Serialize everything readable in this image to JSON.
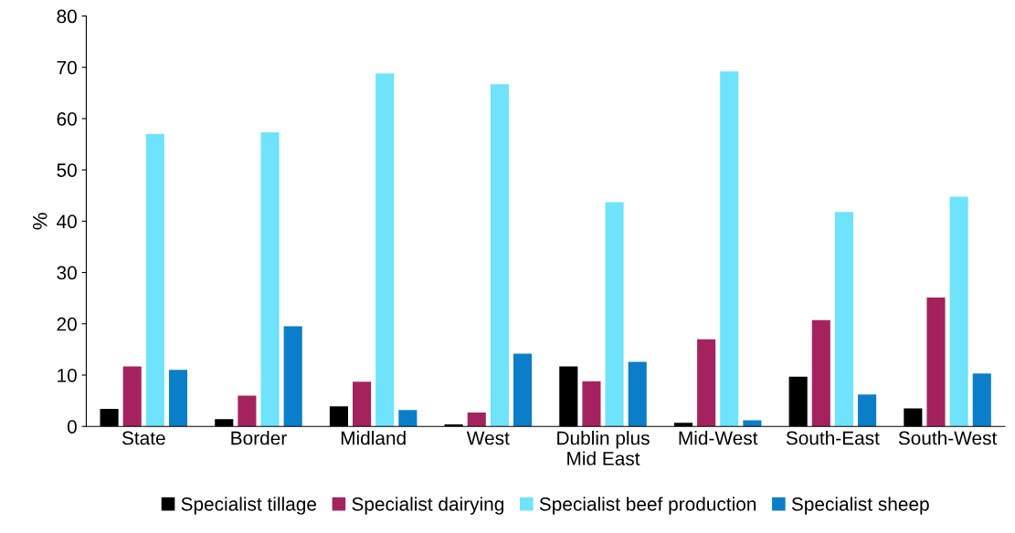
{
  "chart_data": {
    "type": "bar",
    "ylabel": "%",
    "categories": [
      "State",
      "Border",
      "Midland",
      "West",
      "Dublin plus\nMid East",
      "Mid-West",
      "South-East",
      "South-West"
    ],
    "series": [
      {
        "name": "Specialist tillage",
        "color": "#000000",
        "values": [
          3.4,
          1.4,
          3.9,
          0.4,
          11.7,
          0.7,
          9.7,
          3.5
        ]
      },
      {
        "name": "Specialist dairying",
        "color": "#a4235e",
        "values": [
          11.7,
          6.0,
          8.7,
          2.7,
          8.8,
          17.0,
          20.7,
          25.1
        ]
      },
      {
        "name": "Specialist beef production",
        "color": "#6ee3fb",
        "values": [
          57.0,
          57.3,
          68.8,
          66.7,
          43.7,
          69.2,
          41.8,
          44.8
        ]
      },
      {
        "name": "Specialist sheep",
        "color": "#0a7ec8",
        "values": [
          11.0,
          19.5,
          3.2,
          14.2,
          12.6,
          1.2,
          6.2,
          10.3
        ]
      }
    ],
    "ylim": [
      0,
      80
    ],
    "yticks": [
      0,
      10,
      20,
      30,
      40,
      50,
      60,
      70,
      80
    ],
    "grid": false,
    "legend": "bottom"
  }
}
